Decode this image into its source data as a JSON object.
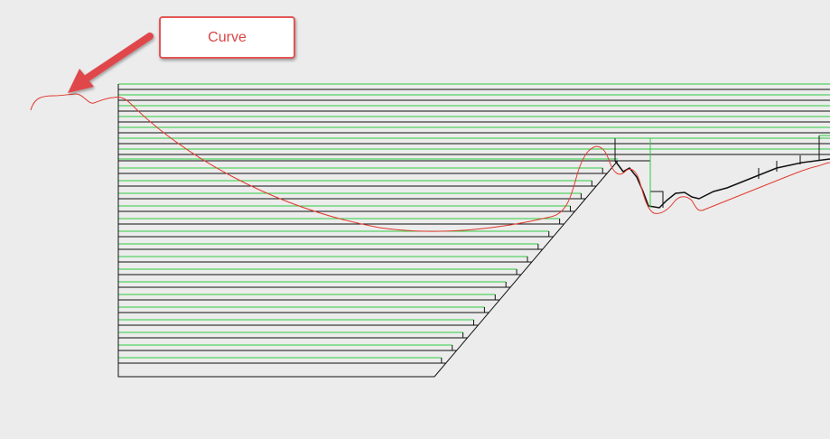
{
  "callout": {
    "label": "Curve"
  },
  "colors": {
    "background": "#ececec",
    "curve": "#e03a2f",
    "green_lines": "#2ecc40",
    "black_lines": "#111111",
    "arrow": "#e0474c"
  },
  "icons": {
    "arrow": "arrow-pointer-icon"
  }
}
